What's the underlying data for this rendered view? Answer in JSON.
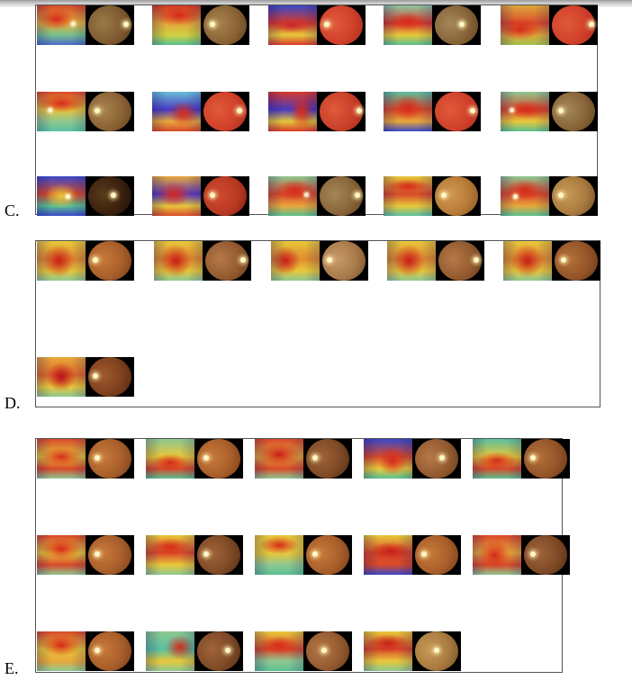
{
  "labels": {
    "c": "C.",
    "d": "D.",
    "e": "E."
  },
  "colors": {
    "heat_red": "#d62a1a",
    "heat_yellow": "#e9c83a",
    "heat_green": "#7ec890",
    "heat_blue": "#3a49c8",
    "fundus_orange": "#c8702a",
    "fundus_red": "#d8402a"
  },
  "panels": [
    {
      "id": "c",
      "rows": 3,
      "cols": 5,
      "count": 15
    },
    {
      "id": "d",
      "rows": 2,
      "cols": 5,
      "count": 6
    },
    {
      "id": "e",
      "rows": 3,
      "cols": 5,
      "count": 14
    }
  ]
}
